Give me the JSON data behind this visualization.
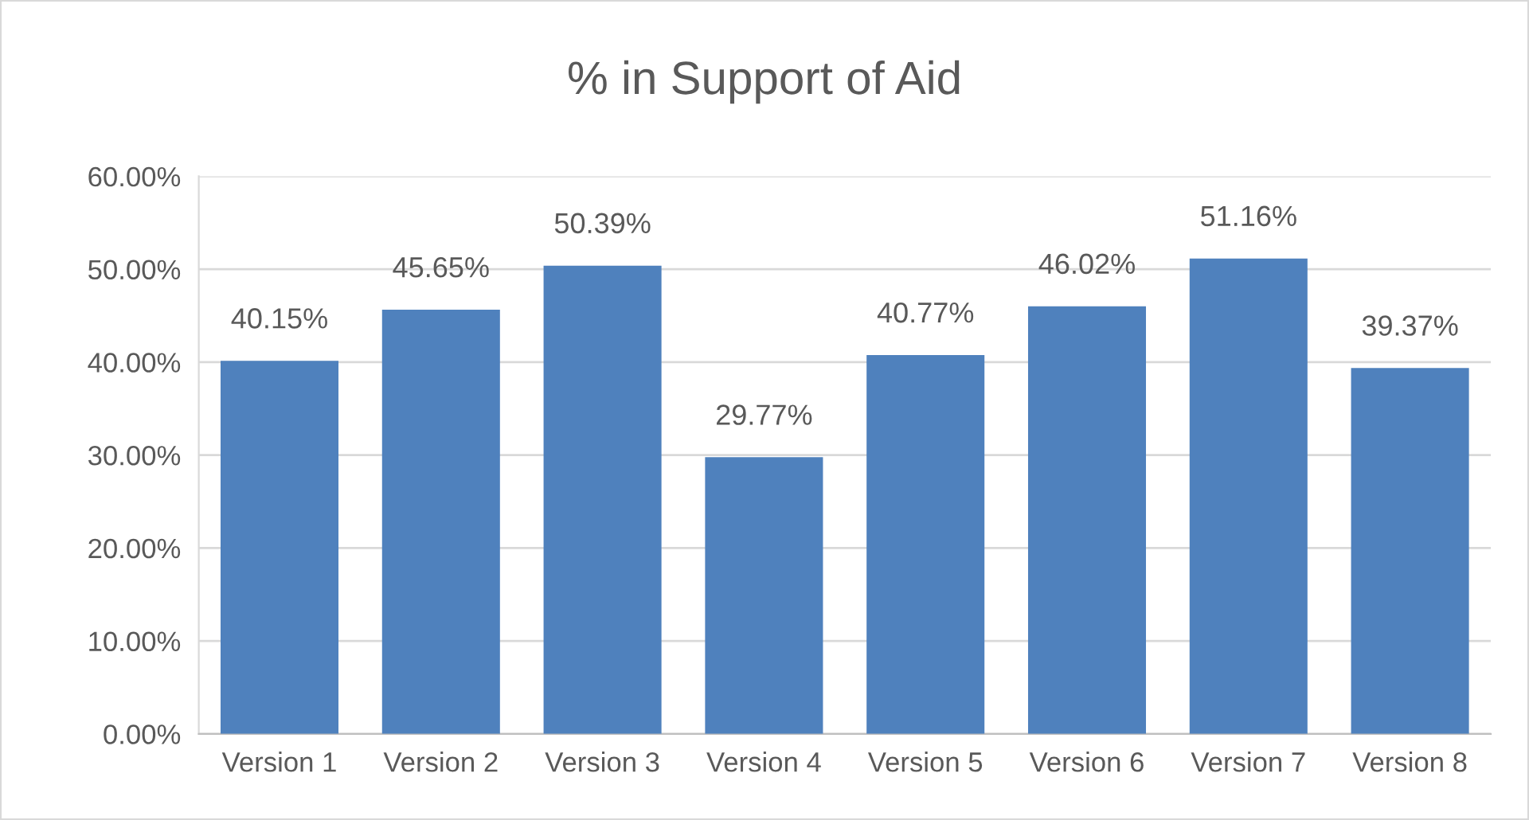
{
  "chart_data": {
    "type": "bar",
    "title": "% in Support of Aid",
    "categories": [
      "Version 1",
      "Version 2",
      "Version 3",
      "Version 4",
      "Version 5",
      "Version 6",
      "Version 7",
      "Version 8"
    ],
    "values": [
      40.15,
      45.65,
      50.39,
      29.77,
      40.77,
      46.02,
      51.16,
      39.37
    ],
    "value_labels": [
      "40.15%",
      "45.65%",
      "50.39%",
      "29.77%",
      "40.77%",
      "46.02%",
      "51.16%",
      "39.37%"
    ],
    "color": "#4f81bd",
    "ylim": [
      0,
      60
    ],
    "yticks": [
      {
        "value": 0,
        "label": "0.00%"
      },
      {
        "value": 10,
        "label": "10.00%"
      },
      {
        "value": 20,
        "label": "20.00%"
      },
      {
        "value": 30,
        "label": "30.00%"
      },
      {
        "value": 40,
        "label": "40.00%"
      },
      {
        "value": 50,
        "label": "50.00%"
      },
      {
        "value": 60,
        "label": "60.00%"
      }
    ],
    "grid": "y"
  }
}
